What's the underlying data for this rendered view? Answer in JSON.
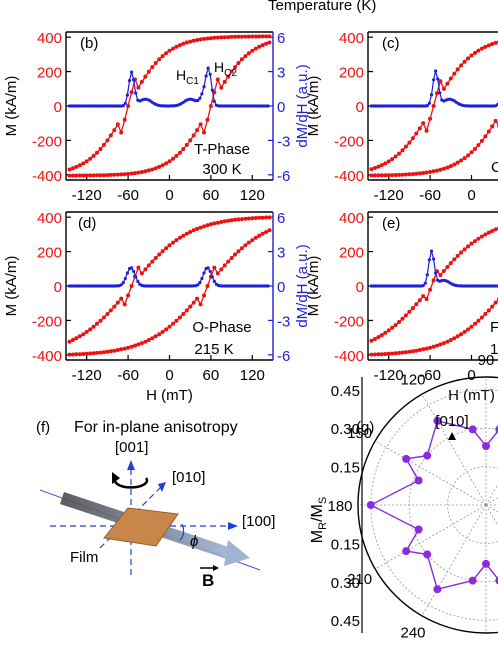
{
  "header_text": "Temperature (K)",
  "colors": {
    "magnetization": "#ee1111",
    "derivative": "#1f1fd8",
    "polar": "#8a2be2",
    "film": "#c9864a",
    "beam": "#8fa6c8"
  },
  "panels": {
    "b": {
      "tag": "(b)",
      "phase": "T-Phase",
      "temp": "300 K",
      "hc1": "H",
      "hc1_sub": "C1",
      "hc2": "H",
      "hc2_sub": "C2"
    },
    "c": {
      "tag": "(c)",
      "phase": "C",
      "temp": ""
    },
    "d": {
      "tag": "(d)",
      "phase": "O-Phase",
      "temp": "215 K"
    },
    "e": {
      "tag": "(e)",
      "phase": "F",
      "temp": "1"
    }
  },
  "axes": {
    "m_label": "M (kA/m)",
    "dm_label": "dM/dH (a.u.)",
    "h_label": "H (mT)",
    "h_label_clipped": "H (mT)",
    "m_ticks": [
      "400",
      "200",
      "0",
      "-200",
      "-400"
    ],
    "dm_ticks": [
      "6",
      "3",
      "0",
      "-3",
      "-6"
    ],
    "h_ticks": [
      "-120",
      "-60",
      "0",
      "60",
      "120"
    ],
    "h_ticks_clipped": [
      "-120",
      "-60",
      "0"
    ]
  },
  "panel_f": {
    "tag": "(f)",
    "title": "For in-plane anisotropy",
    "dir_001": "[001]",
    "dir_010": "[010]",
    "dir_100": "[100]",
    "film": "Film",
    "phi": "ϕ",
    "b_field": "B"
  },
  "panel_g": {
    "tag": "(g)",
    "top_dir": "[010]",
    "ylabel_main": "M",
    "ylabel_sub1": "R",
    "ylabel_sep": "/M",
    "ylabel_sub2": "S",
    "r_ticks_upper": [
      "0.45",
      "0.30",
      "0.15"
    ],
    "r_ticks_lower": [
      "0.15",
      "0.30",
      "0.45"
    ],
    "angle_labels": [
      "90",
      "120",
      "150",
      "180",
      "210",
      "240",
      "270"
    ]
  },
  "chart_data": [
    {
      "panel": "(b)",
      "type": "line",
      "x_axis": {
        "label": "H (mT)",
        "range": [
          -150,
          150
        ],
        "ticks": [
          -120,
          -60,
          0,
          60,
          120
        ]
      },
      "y_axis_left": {
        "label": "M (kA/m)",
        "range": [
          -430,
          430
        ],
        "ticks": [
          -400,
          -200,
          0,
          200,
          400
        ]
      },
      "y_axis_right": {
        "label": "dM/dH (a.u.)",
        "range": [
          -6.45,
          6.45
        ],
        "ticks": [
          -6,
          -3,
          0,
          3,
          6
        ]
      },
      "loop": {
        "ms": 405,
        "hc_up": 60,
        "hc_down": -60,
        "sharpness": 0.5
      },
      "dmdh_peaks": [
        {
          "h": -55,
          "height": 2.9,
          "width": 4
        },
        {
          "h": -35,
          "height": 0.6,
          "width": 9
        },
        {
          "h": 30,
          "height": 0.6,
          "width": 9
        },
        {
          "h": 50,
          "height": 1.0,
          "width": 5
        },
        {
          "h": 57,
          "height": 2.9,
          "width": 4
        }
      ]
    },
    {
      "panel": "(c)",
      "type": "line",
      "x_axis": {
        "label": "H (mT)",
        "range": [
          -150,
          150
        ],
        "ticks": [
          -120,
          -60,
          0
        ]
      },
      "y_axis_left": {
        "label": "M (kA/m)",
        "range": [
          -430,
          430
        ],
        "ticks": [
          -400,
          -200,
          0,
          200,
          400
        ]
      },
      "y_axis_right": {
        "label": "dM/dH (a.u.)",
        "range": [
          -6.45,
          6.45
        ]
      },
      "loop": {
        "ms": 405,
        "hc_up": 48,
        "hc_down": -55,
        "sharpness": 0.55
      },
      "dmdh_peaks": [
        {
          "h": -52,
          "height": 3.0,
          "width": 4
        },
        {
          "h": -32,
          "height": 0.6,
          "width": 9
        },
        {
          "h": 48,
          "height": 3.0,
          "width": 4
        },
        {
          "h": 70,
          "height": 0.5,
          "width": 8
        }
      ]
    },
    {
      "panel": "(d)",
      "type": "line",
      "x_axis": {
        "label": "H (mT)",
        "range": [
          -150,
          150
        ],
        "ticks": [
          -120,
          -60,
          0,
          60,
          120
        ]
      },
      "y_axis_left": {
        "label": "M (kA/m)",
        "range": [
          -430,
          430
        ],
        "ticks": [
          -400,
          -200,
          0,
          200,
          400
        ]
      },
      "y_axis_right": {
        "label": "dM/dH (a.u.)",
        "range": [
          -6.45,
          6.45
        ],
        "ticks": [
          -6,
          -3,
          0,
          3,
          6
        ]
      },
      "loop": {
        "ms": 405,
        "hc_up": 55,
        "hc_down": -55,
        "sharpness": 0.8
      },
      "dmdh_peaks": [
        {
          "h": -56,
          "height": 1.6,
          "width": 6
        },
        {
          "h": 55,
          "height": 1.6,
          "width": 6
        }
      ]
    },
    {
      "panel": "(e)",
      "type": "line",
      "x_axis": {
        "label": "H (mT)",
        "range": [
          -150,
          150
        ],
        "ticks": [
          -120,
          -60,
          0
        ]
      },
      "y_axis_left": {
        "label": "M (kA/m)",
        "range": [
          -430,
          430
        ],
        "ticks": [
          -400,
          -200,
          0,
          200,
          400
        ]
      },
      "y_axis_right": {
        "label": "dM/dH (a.u.)",
        "range": [
          -6.45,
          6.45
        ]
      },
      "loop": {
        "ms": 405,
        "hc_up": 55,
        "hc_down": -58,
        "sharpness": 0.8
      },
      "dmdh_peaks": [
        {
          "h": -58,
          "height": 3.0,
          "width": 4
        },
        {
          "h": -40,
          "height": 0.5,
          "width": 8
        }
      ]
    },
    {
      "panel": "(g)",
      "type": "scatter",
      "coordinate_system": "polar",
      "radial_axis": {
        "label": "MR/MS",
        "range": [
          0,
          0.5
        ],
        "ticks": [
          0.15,
          0.3,
          0.45
        ]
      },
      "angle_deg": [
        90,
        100,
        120,
        140,
        150,
        160,
        180,
        200,
        210,
        220,
        240,
        260,
        270,
        280,
        300,
        320,
        330,
        340,
        0,
        20,
        30,
        40,
        60,
        80
      ],
      "r": [
        0.23,
        0.3,
        0.38,
        0.3,
        0.36,
        0.28,
        0.45,
        0.28,
        0.36,
        0.3,
        0.38,
        0.3,
        0.23,
        0.3,
        0.38,
        0.3,
        0.36,
        0.28,
        0.45,
        0.28,
        0.36,
        0.3,
        0.38,
        0.3
      ]
    }
  ]
}
